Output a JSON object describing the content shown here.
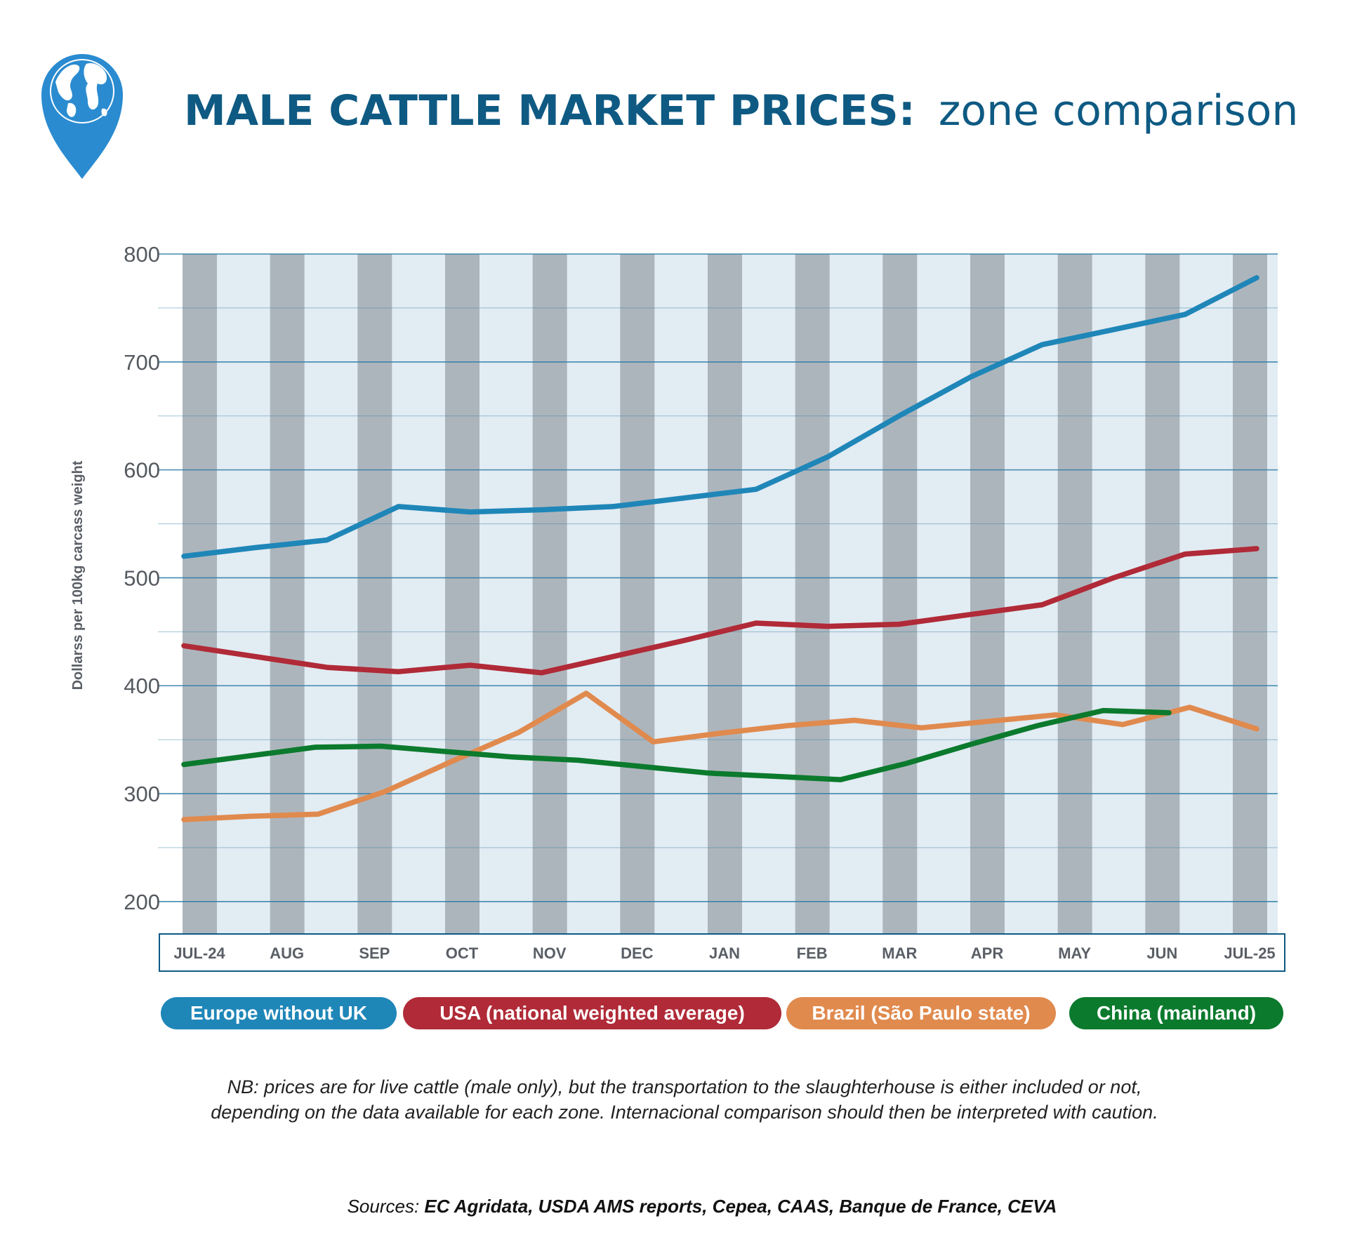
{
  "header": {
    "title_bold": "MALE CATTLE MARKET PRICES:",
    "title_light": "zone comparison",
    "logo_icon": "globe-pin-icon"
  },
  "colors": {
    "title": "#0e5a83",
    "dark_band": "#adb5bc",
    "light_band": "#e2ecf3",
    "grid": "#2f7ea8",
    "logo": "#2a8bd0"
  },
  "chart_data": {
    "type": "line",
    "ylabel": "Dollarss per 100kg carcass weight",
    "xlabel": "",
    "ylim": [
      170,
      800
    ],
    "yticks": [
      200,
      300,
      400,
      500,
      600,
      700,
      800
    ],
    "x_tick_labels": [
      "JUL-24",
      "AUG",
      "SEP",
      "OCT",
      "NOV",
      "DEC",
      "JAN",
      "FEB",
      "MAR",
      "APR",
      "MAY",
      "JUN",
      "JUL-25"
    ],
    "grid": true,
    "legend_position": "bottom",
    "series": [
      {
        "name": "Europe without UK",
        "color": "#1f86b8",
        "values": [
          520,
          528,
          535,
          566,
          561,
          563,
          566,
          574,
          582,
          612,
          650,
          686,
          716,
          730,
          744,
          778
        ]
      },
      {
        "name": "USA (national weighted average)",
        "color": "#b02a37",
        "values": [
          437,
          427,
          417,
          413,
          419,
          412,
          427,
          442,
          458,
          455,
          457,
          466,
          475,
          500,
          522,
          527
        ]
      },
      {
        "name": "Brazil (São Paulo state)",
        "color": "#e08a4e",
        "values": [
          276,
          279,
          281,
          302,
          330,
          357,
          393,
          348,
          356,
          363,
          368,
          361,
          367,
          373,
          364,
          380,
          360
        ]
      },
      {
        "name": "China (mainland)",
        "color": "#0b7a2d",
        "values": [
          327,
          335,
          343,
          344,
          339,
          334,
          331,
          325,
          319,
          316,
          313,
          328,
          346,
          363,
          377,
          375
        ]
      }
    ]
  },
  "note": {
    "line1": "NB: prices are for live cattle (male only), but the transportation to the slaughterhouse is either included or not,",
    "line2": "depending on the data available for each zone. Internacional comparison should then be interpreted with caution."
  },
  "sources": {
    "prefix": "Sources: ",
    "list": "EC Agridata, USDA AMS reports, Cepea, CAAS, Banque de France, CEVA"
  }
}
